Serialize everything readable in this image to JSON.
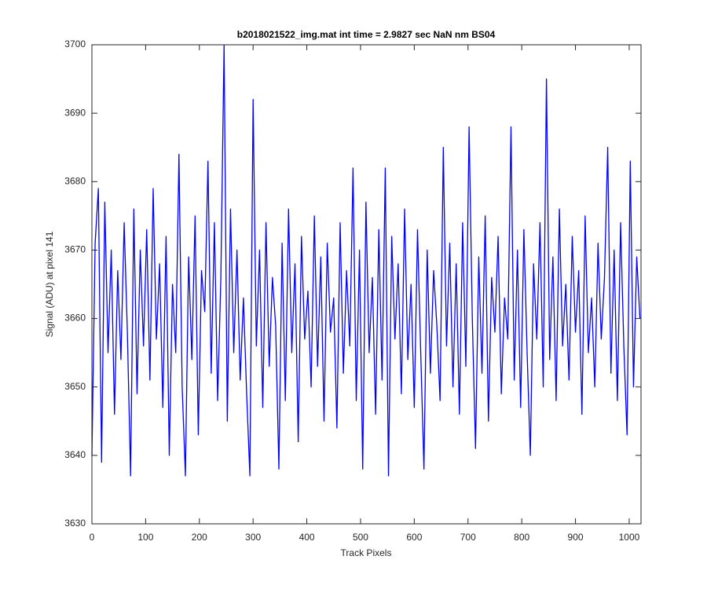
{
  "chart_data": {
    "type": "line",
    "title": "b2018021522_img.mat int time = 2.9827 sec  NaN nm BS04",
    "x_label": "Track Pixels",
    "y_label": "Signal (ADU) at pixel 141",
    "color": "#0000ff",
    "xlim": [
      0,
      1022
    ],
    "ylim": [
      3630,
      3700
    ],
    "xticks": [
      0,
      100,
      200,
      300,
      400,
      500,
      600,
      700,
      800,
      900,
      1000
    ],
    "yticks": [
      3630,
      3640,
      3650,
      3660,
      3670,
      3680,
      3690,
      3700
    ],
    "x": [
      0,
      6,
      12,
      18,
      24,
      30,
      36,
      42,
      48,
      54,
      60,
      66,
      72,
      78,
      84,
      90,
      96,
      102,
      108,
      114,
      120,
      126,
      132,
      138,
      144,
      150,
      156,
      162,
      168,
      174,
      180,
      186,
      192,
      198,
      204,
      210,
      216,
      222,
      228,
      234,
      240,
      246,
      252,
      258,
      264,
      270,
      276,
      282,
      288,
      294,
      300,
      306,
      312,
      318,
      324,
      330,
      336,
      342,
      348,
      354,
      360,
      366,
      372,
      378,
      384,
      390,
      396,
      402,
      408,
      414,
      420,
      426,
      432,
      438,
      444,
      450,
      456,
      462,
      468,
      474,
      480,
      486,
      492,
      498,
      504,
      510,
      516,
      522,
      528,
      534,
      540,
      546,
      552,
      558,
      564,
      570,
      576,
      582,
      588,
      594,
      600,
      606,
      612,
      618,
      624,
      630,
      636,
      642,
      648,
      654,
      660,
      666,
      672,
      678,
      684,
      690,
      696,
      702,
      708,
      714,
      720,
      726,
      732,
      738,
      744,
      750,
      756,
      762,
      768,
      774,
      780,
      786,
      792,
      798,
      804,
      810,
      816,
      822,
      828,
      834,
      840,
      846,
      852,
      858,
      864,
      870,
      876,
      882,
      888,
      894,
      900,
      906,
      912,
      918,
      924,
      930,
      936,
      942,
      948,
      954,
      960,
      966,
      972,
      978,
      984,
      990,
      996,
      1002,
      1008,
      1014,
      1020
    ],
    "values": [
      3640,
      3671,
      3679,
      3639,
      3677,
      3655,
      3670,
      3646,
      3667,
      3654,
      3674,
      3658,
      3637,
      3676,
      3649,
      3670,
      3656,
      3673,
      3651,
      3679,
      3657,
      3668,
      3647,
      3672,
      3640,
      3665,
      3655,
      3684,
      3650,
      3637,
      3669,
      3654,
      3675,
      3643,
      3667,
      3661,
      3683,
      3652,
      3674,
      3648,
      3666,
      3700,
      3645,
      3676,
      3655,
      3670,
      3651,
      3663,
      3649,
      3637,
      3692,
      3656,
      3670,
      3647,
      3674,
      3653,
      3666,
      3659,
      3638,
      3671,
      3648,
      3676,
      3655,
      3668,
      3642,
      3672,
      3657,
      3664,
      3650,
      3675,
      3653,
      3669,
      3645,
      3671,
      3658,
      3663,
      3644,
      3674,
      3652,
      3667,
      3656,
      3682,
      3648,
      3670,
      3638,
      3677,
      3655,
      3666,
      3646,
      3673,
      3651,
      3682,
      3637,
      3672,
      3657,
      3668,
      3649,
      3676,
      3654,
      3665,
      3647,
      3673,
      3655,
      3638,
      3670,
      3652,
      3667,
      3659,
      3648,
      3685,
      3656,
      3671,
      3650,
      3668,
      3646,
      3674,
      3653,
      3688,
      3660,
      3641,
      3669,
      3652,
      3675,
      3645,
      3666,
      3658,
      3672,
      3649,
      3663,
      3657,
      3688,
      3651,
      3670,
      3647,
      3673,
      3655,
      3640,
      3668,
      3657,
      3674,
      3650,
      3695,
      3654,
      3669,
      3648,
      3676,
      3656,
      3665,
      3651,
      3672,
      3658,
      3667,
      3646,
      3675,
      3655,
      3663,
      3650,
      3671,
      3657,
      3666,
      3685,
      3652,
      3670,
      3648,
      3674,
      3656,
      3643,
      3683,
      3650,
      3669,
      3660
    ]
  }
}
